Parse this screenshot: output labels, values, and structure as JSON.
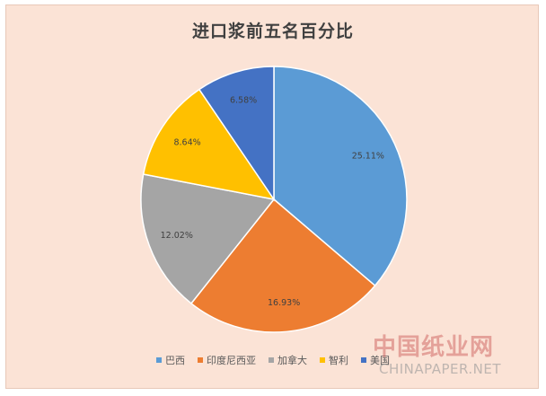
{
  "chart_data": {
    "type": "pie",
    "title": "进口浆前五名百分比",
    "slices": [
      {
        "name": "巴西",
        "value": 25.11,
        "label": "25.11%",
        "color": "#5b9bd5"
      },
      {
        "name": "印度尼西亚",
        "value": 16.93,
        "label": "16.93%",
        "color": "#ed7d31"
      },
      {
        "name": "加拿大",
        "value": 12.02,
        "label": "12.02%",
        "color": "#a5a5a5"
      },
      {
        "name": "智利",
        "value": 8.64,
        "label": "8.64%",
        "color": "#ffc000"
      },
      {
        "name": "美国",
        "value": 6.58,
        "label": "6.58%",
        "color": "#4472c4"
      }
    ],
    "legend_position": "bottom"
  },
  "watermark": {
    "text_cn": "中国纸业网",
    "text_en": "CHINAPAPER.NET"
  }
}
